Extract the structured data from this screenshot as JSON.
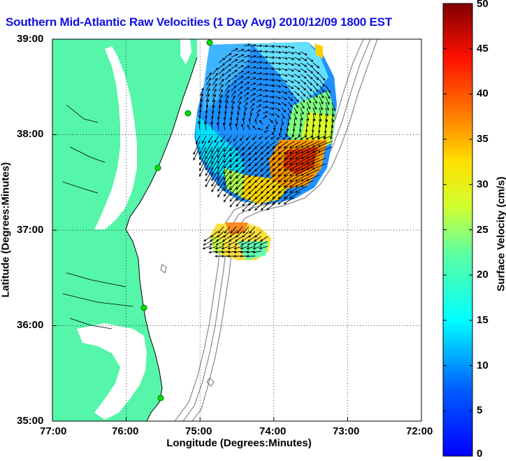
{
  "title": "Southern Mid-Atlantic Raw Velocities (1 Day Avg) 2010/12/09 1800 EST",
  "xlabel": "Longitude (Degrees:Minutes)",
  "ylabel": "Latitude (Degrees:Minutes)",
  "x_ticks": [
    "77:00",
    "76:00",
    "75:00",
    "74:00",
    "73:00",
    "72:00"
  ],
  "y_ticks": [
    "39:00",
    "38:00",
    "37:00",
    "36:00",
    "35:00"
  ],
  "colorbar": {
    "label": "Surface Velocity (cm/s)",
    "ticks": [
      "0",
      "5",
      "10",
      "15",
      "20",
      "25",
      "30",
      "35",
      "40",
      "45",
      "50"
    ],
    "range": [
      0,
      50
    ],
    "colormap": "jet"
  },
  "map": {
    "lon_range": [
      -77,
      -72
    ],
    "lat_range": [
      35,
      39
    ],
    "grid": true,
    "land_color": "#55f5aa",
    "sea_color": "#ffffff",
    "station_color": "#00e000",
    "bathymetry_color": "#888888"
  }
}
